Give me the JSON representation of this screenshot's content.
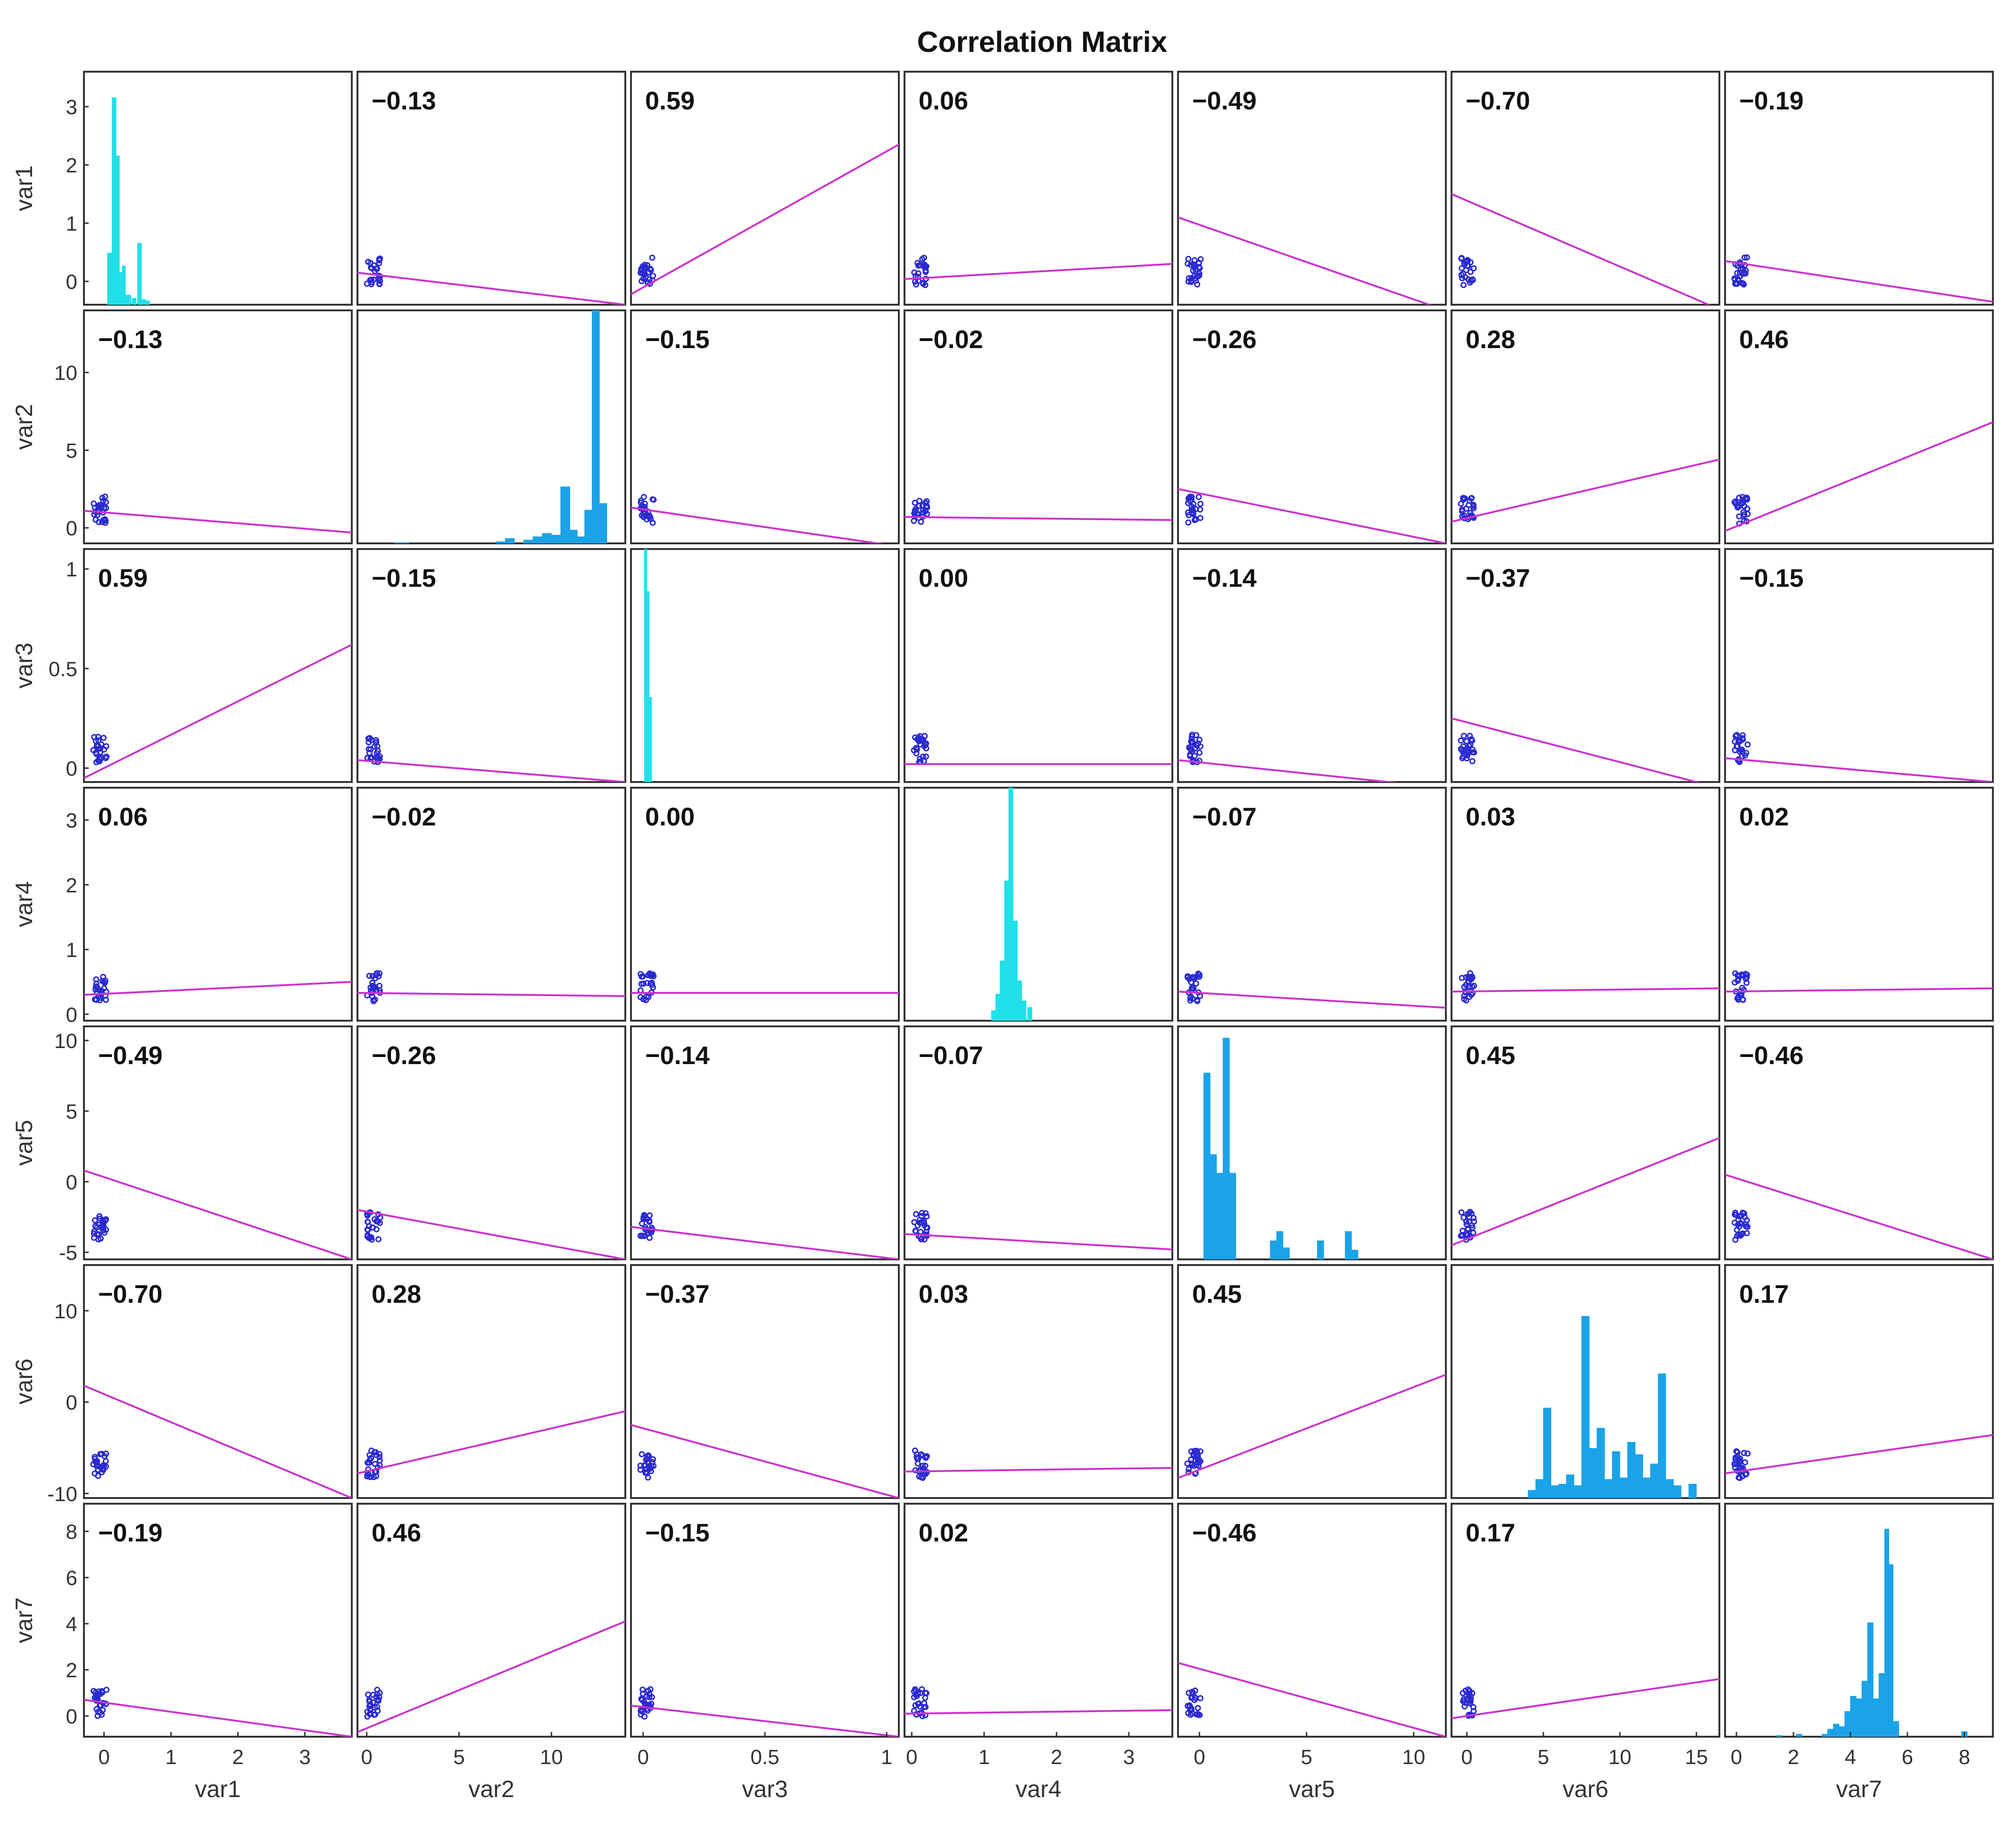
{
  "chart_data": {
    "type": "scatter",
    "title": "Correlation Matrix",
    "variables": [
      "var1",
      "var2",
      "var3",
      "var4",
      "var5",
      "var6",
      "var7"
    ],
    "x_ticks": [
      [
        0,
        1,
        2,
        3
      ],
      [
        0,
        5,
        10
      ],
      [
        0,
        0.5,
        1
      ],
      [
        0,
        1,
        2,
        3
      ],
      [
        0,
        5,
        10
      ],
      [
        0,
        5,
        10,
        15
      ],
      [
        0,
        2,
        4,
        6,
        8
      ]
    ],
    "y_ticks": [
      [
        0,
        1,
        2,
        3
      ],
      [
        0,
        5,
        10
      ],
      [
        0,
        0.5,
        1
      ],
      [
        0,
        1,
        2,
        3
      ],
      [
        -5,
        0,
        5,
        10
      ],
      [
        -10,
        0,
        10
      ],
      [
        0,
        2,
        4,
        6,
        8
      ]
    ],
    "x_ranges": [
      [
        -0.3,
        3.7
      ],
      [
        -0.5,
        14
      ],
      [
        -0.05,
        1.05
      ],
      [
        -0.1,
        3.6
      ],
      [
        -1,
        11.5
      ],
      [
        -1,
        16.5
      ],
      [
        -0.4,
        9
      ]
    ],
    "y_ranges": [
      [
        -0.4,
        3.6
      ],
      [
        -1,
        14
      ],
      [
        -0.07,
        1.1
      ],
      [
        -0.1,
        3.5
      ],
      [
        -5.5,
        11
      ],
      [
        -10.5,
        15
      ],
      [
        -0.9,
        9.2
      ]
    ],
    "correlations": [
      [
        "",
        "−0.13",
        "0.59",
        "0.06",
        "−0.49",
        "−0.70",
        "−0.19"
      ],
      [
        "−0.13",
        "",
        "−0.15",
        "−0.02",
        "−0.26",
        "0.28",
        "0.46"
      ],
      [
        "0.59",
        "−0.15",
        "",
        "0.00",
        "−0.14",
        "−0.37",
        "−0.15"
      ],
      [
        "0.06",
        "−0.02",
        "0.00",
        "",
        "−0.07",
        "0.03",
        "0.02"
      ],
      [
        "−0.49",
        "−0.26",
        "−0.14",
        "−0.07",
        "",
        "0.45",
        "−0.46"
      ],
      [
        "−0.70",
        "0.28",
        "−0.37",
        "0.03",
        "0.45",
        "",
        "0.17"
      ],
      [
        "−0.19",
        "0.46",
        "−0.15",
        "0.02",
        "−0.46",
        "0.17",
        ""
      ]
    ],
    "fit_lines": [
      [
        null,
        [
          0.15,
          -0.4
        ],
        [
          -0.22,
          2.35
        ],
        [
          0.04,
          0.3
        ],
        [
          1.1,
          -0.5
        ],
        [
          1.5,
          -0.48
        ],
        [
          0.35,
          -0.35
        ]
      ],
      [
        [
          1.1,
          -0.3
        ],
        null,
        [
          1.3,
          -1.2
        ],
        [
          0.7,
          0.5
        ],
        [
          2.5,
          -1.0
        ],
        [
          0.4,
          4.4
        ],
        [
          -0.2,
          6.8
        ]
      ],
      [
        [
          -0.05,
          0.62
        ],
        [
          0.04,
          -0.07
        ],
        null,
        [
          0.02,
          0.02
        ],
        [
          0.04,
          -0.1
        ],
        [
          0.25,
          -0.1
        ],
        [
          0.05,
          -0.07
        ]
      ],
      [
        [
          0.3,
          0.5
        ],
        [
          0.33,
          0.28
        ],
        [
          0.33,
          0.33
        ],
        null,
        [
          0.35,
          0.1
        ],
        [
          0.35,
          0.4
        ],
        [
          0.35,
          0.4
        ]
      ],
      [
        [
          0.8,
          -5.5
        ],
        [
          -2.0,
          -5.5
        ],
        [
          -3.2,
          -5.5
        ],
        [
          -3.7,
          -4.8
        ],
        null,
        [
          -4.5,
          3.1
        ],
        [
          0.5,
          -5.5
        ]
      ],
      [
        [
          1.8,
          -10.5
        ],
        [
          -7.8,
          -1.0
        ],
        [
          -2.5,
          -10.5
        ],
        [
          -7.6,
          -7.2
        ],
        [
          -8.3,
          3.0
        ],
        null,
        [
          -7.8,
          -3.6
        ]
      ],
      [
        [
          0.7,
          -0.9
        ],
        [
          -0.7,
          4.1
        ],
        [
          0.45,
          -0.9
        ],
        [
          0.1,
          0.25
        ],
        [
          2.3,
          -0.9
        ],
        [
          -0.1,
          1.6
        ],
        null
      ]
    ],
    "histograms": [
      {
        "bins": [
          [
            0.05,
            0.12,
            0.8
          ],
          [
            0.12,
            0.18,
            3.2
          ],
          [
            0.18,
            0.23,
            2.3
          ],
          [
            0.23,
            0.27,
            0.5
          ],
          [
            0.27,
            0.32,
            0.6
          ],
          [
            0.32,
            0.4,
            0.15
          ],
          [
            0.42,
            0.48,
            0.1
          ],
          [
            0.5,
            0.56,
            0.95
          ],
          [
            0.56,
            0.62,
            0.08
          ],
          [
            0.62,
            0.68,
            0.06
          ]
        ],
        "ymax": 3.6
      },
      {
        "bins": [
          [
            1.5,
            2.3,
            0.03
          ],
          [
            7.0,
            7.5,
            0.1
          ],
          [
            7.5,
            8.0,
            0.3
          ],
          [
            8.5,
            9.0,
            0.2
          ],
          [
            9.0,
            9.5,
            0.4
          ],
          [
            9.5,
            10.0,
            0.6
          ],
          [
            10.0,
            10.5,
            0.5
          ],
          [
            10.5,
            11.0,
            3.4
          ],
          [
            11.0,
            11.4,
            0.8
          ],
          [
            11.4,
            11.8,
            0.4
          ],
          [
            11.8,
            12.2,
            2.0
          ],
          [
            12.2,
            12.6,
            14.0
          ],
          [
            12.6,
            13.0,
            2.4
          ]
        ],
        "ymax": 14
      },
      {
        "bins": [
          [
            0.005,
            0.015,
            1.1
          ],
          [
            0.015,
            0.025,
            0.9
          ],
          [
            0.025,
            0.035,
            0.4
          ]
        ],
        "ymax": 1.1
      },
      {
        "bins": [
          [
            1.1,
            1.16,
            0.15
          ],
          [
            1.16,
            1.22,
            0.4
          ],
          [
            1.22,
            1.28,
            0.9
          ],
          [
            1.28,
            1.34,
            2.1
          ],
          [
            1.34,
            1.4,
            3.5
          ],
          [
            1.4,
            1.46,
            1.5
          ],
          [
            1.46,
            1.52,
            0.6
          ],
          [
            1.52,
            1.58,
            0.3
          ],
          [
            1.6,
            1.66,
            0.2
          ]
        ],
        "ymax": 3.5
      },
      {
        "bins": [
          [
            0.2,
            0.5,
            8.0
          ],
          [
            0.5,
            0.8,
            4.5
          ],
          [
            0.8,
            1.1,
            3.7
          ],
          [
            1.1,
            1.4,
            9.5
          ],
          [
            1.4,
            1.7,
            3.7
          ],
          [
            3.3,
            3.6,
            0.8
          ],
          [
            3.6,
            3.9,
            1.2
          ],
          [
            3.9,
            4.2,
            0.5
          ],
          [
            5.5,
            5.8,
            0.8
          ],
          [
            6.8,
            7.1,
            1.2
          ],
          [
            7.1,
            7.4,
            0.4
          ]
        ],
        "ymax": 10
      },
      {
        "bins": [
          [
            4,
            4.5,
            0.5
          ],
          [
            4.5,
            5,
            1.2
          ],
          [
            5,
            5.5,
            5.8
          ],
          [
            5.5,
            6,
            0.8
          ],
          [
            6,
            6.5,
            0.9
          ],
          [
            6.5,
            7,
            1.5
          ],
          [
            7,
            7.5,
            0.8
          ],
          [
            7.5,
            8,
            11.7
          ],
          [
            8,
            8.5,
            3.2
          ],
          [
            8.5,
            9,
            4.5
          ],
          [
            9,
            9.5,
            1.2
          ],
          [
            9.5,
            10,
            3.0
          ],
          [
            10,
            10.5,
            1.3
          ],
          [
            10.5,
            11,
            3.6
          ],
          [
            11,
            11.5,
            2.8
          ],
          [
            11.5,
            12,
            1.3
          ],
          [
            12,
            12.5,
            2.2
          ],
          [
            12.5,
            13,
            8.0
          ],
          [
            13,
            13.5,
            1.2
          ],
          [
            13.5,
            14,
            0.8
          ],
          [
            14.5,
            15,
            0.9
          ]
        ],
        "ymax": 15
      },
      {
        "bins": [
          [
            1.4,
            1.6,
            0.05
          ],
          [
            2.1,
            2.3,
            0.1
          ],
          [
            3.0,
            3.2,
            0.1
          ],
          [
            3.2,
            3.4,
            0.3
          ],
          [
            3.4,
            3.6,
            0.5
          ],
          [
            3.6,
            3.8,
            0.4
          ],
          [
            3.8,
            4.0,
            1.0
          ],
          [
            4.0,
            4.2,
            1.6
          ],
          [
            4.2,
            4.4,
            1.5
          ],
          [
            4.4,
            4.6,
            2.2
          ],
          [
            4.6,
            4.8,
            4.5
          ],
          [
            4.8,
            5.0,
            1.5
          ],
          [
            5.0,
            5.2,
            2.5
          ],
          [
            5.2,
            5.35,
            8.2
          ],
          [
            5.35,
            5.5,
            6.8
          ],
          [
            5.5,
            5.7,
            0.6
          ],
          [
            7.9,
            8.1,
            0.2
          ]
        ],
        "ymax": 9.2
      }
    ],
    "hist_colors": [
      "#22e0e8",
      "#1aa3e8",
      "#22e0e8",
      "#22e0e8",
      "#1aa3e8",
      "#1aa3e8",
      "#1aa3e8"
    ],
    "marker_color": "#2a2ad0",
    "fit_color": "#cc33cc",
    "grid": false
  }
}
